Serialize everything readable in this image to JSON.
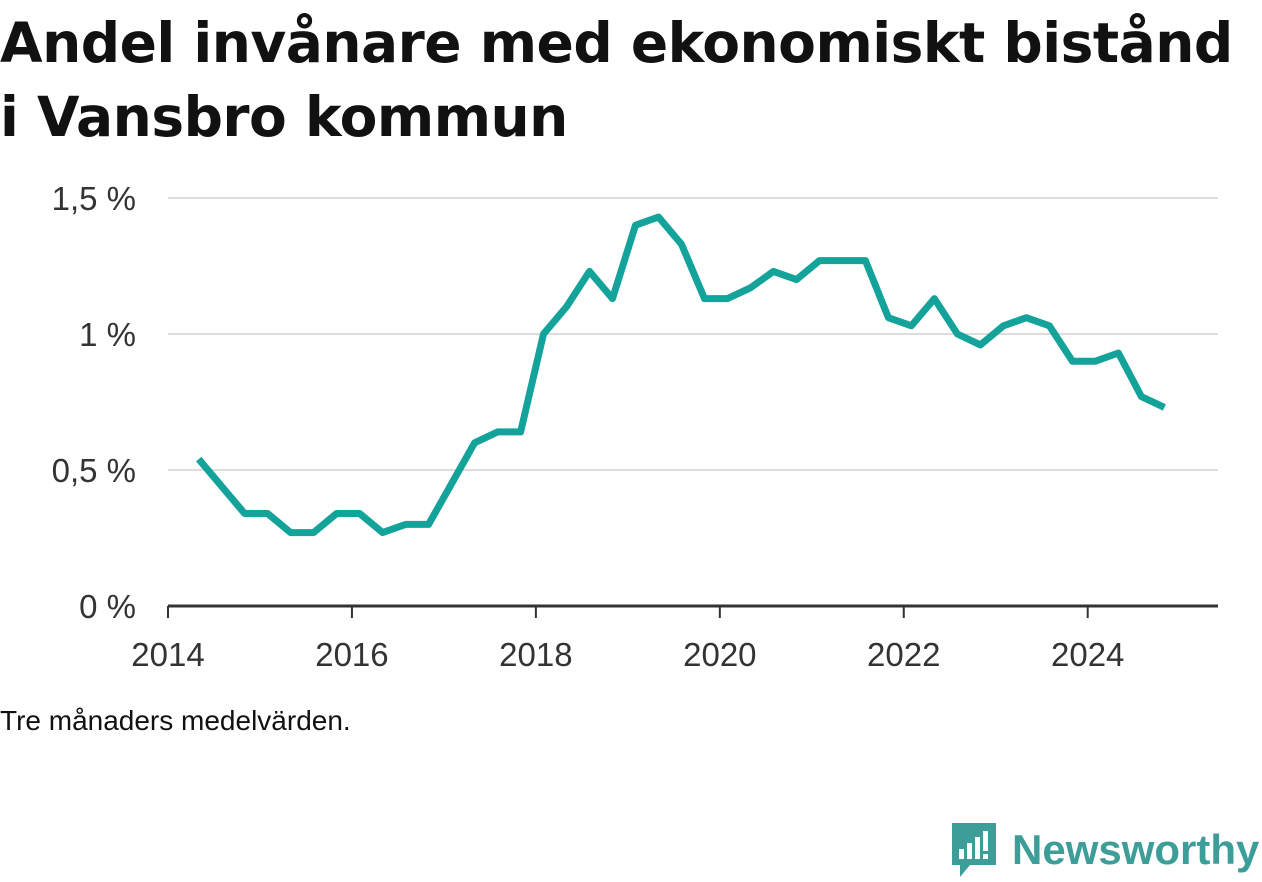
{
  "title": "Andel invånare med ekonomiskt bistånd i Vansbro kommun",
  "note": "Tre månaders medelvärden.",
  "brand": {
    "name": "Newsworthy",
    "icon": "newsworthy-logo-icon",
    "color": "#3d9e99"
  },
  "chart_data": {
    "type": "line",
    "title": "Andel invånare med ekonomiskt bistånd i Vansbro kommun",
    "xlabel": "",
    "ylabel": "",
    "ylim": [
      0,
      1.5
    ],
    "xlim": [
      "2014-01-01",
      "2025-06-01"
    ],
    "grid": true,
    "line_color": "#13a39a",
    "x_ticks": [
      "2014",
      "2016",
      "2018",
      "2020",
      "2022",
      "2024"
    ],
    "y_ticks": [
      {
        "value": 0,
        "label": "0 %"
      },
      {
        "value": 0.5,
        "label": "0,5 %"
      },
      {
        "value": 1,
        "label": "1 %"
      },
      {
        "value": 1.5,
        "label": "1,5 %"
      }
    ],
    "series": [
      {
        "x": [
          "2014-05",
          "2014-08",
          "2014-11",
          "2015-02",
          "2015-05",
          "2015-08",
          "2015-11",
          "2016-02",
          "2016-05",
          "2016-08",
          "2016-11",
          "2017-02",
          "2017-05",
          "2017-08",
          "2017-11",
          "2018-02",
          "2018-05",
          "2018-08",
          "2018-11",
          "2019-02",
          "2019-05",
          "2019-08",
          "2019-11",
          "2020-02",
          "2020-05",
          "2020-08",
          "2020-11",
          "2021-02",
          "2021-05",
          "2021-08",
          "2021-11",
          "2022-02",
          "2022-05",
          "2022-08",
          "2022-11",
          "2023-02",
          "2023-05",
          "2023-08",
          "2023-11",
          "2024-02",
          "2024-05",
          "2024-08",
          "2024-11"
        ],
        "y": [
          0.54,
          0.44,
          0.34,
          0.34,
          0.27,
          0.27,
          0.34,
          0.34,
          0.27,
          0.3,
          0.3,
          0.45,
          0.6,
          0.64,
          0.64,
          1.0,
          1.1,
          1.23,
          1.13,
          1.4,
          1.43,
          1.33,
          1.13,
          1.13,
          1.17,
          1.23,
          1.2,
          1.27,
          1.27,
          1.27,
          1.06,
          1.03,
          1.13,
          1.0,
          0.96,
          1.03,
          1.06,
          1.03,
          0.9,
          0.9,
          0.93,
          0.77,
          0.73
        ]
      }
    ]
  }
}
